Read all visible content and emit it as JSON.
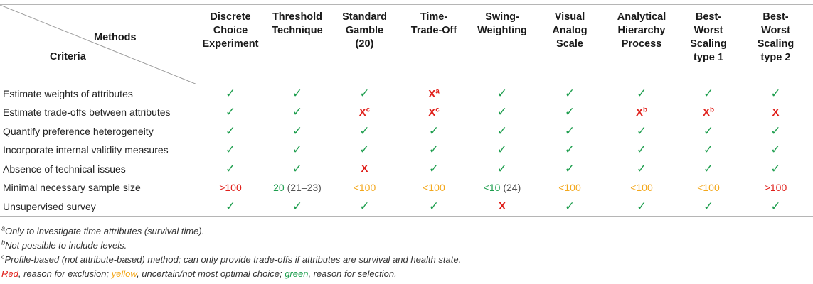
{
  "table": {
    "corner": {
      "methods_label": "Methods",
      "criteria_label": "Criteria"
    },
    "methods": [
      {
        "lines": [
          "Discrete",
          "Choice",
          "Experiment",
          ""
        ]
      },
      {
        "lines": [
          "Threshold",
          "Technique",
          "",
          ""
        ]
      },
      {
        "lines": [
          "Standard",
          "Gamble",
          "(20)",
          ""
        ]
      },
      {
        "lines": [
          "Time-",
          "Trade-Off",
          "",
          ""
        ]
      },
      {
        "lines": [
          "Swing-",
          "Weighting",
          "",
          ""
        ]
      },
      {
        "lines": [
          "Visual",
          "Analog",
          "Scale",
          ""
        ]
      },
      {
        "lines": [
          "Analytical",
          "Hierarchy",
          "Process",
          ""
        ]
      },
      {
        "lines": [
          "Best-",
          "Worst",
          "Scaling",
          "type 1"
        ]
      },
      {
        "lines": [
          "Best-",
          "Worst",
          "Scaling",
          "type 2"
        ]
      }
    ],
    "rows": [
      {
        "label": "Estimate weights of attributes",
        "cells": [
          {
            "text": "✓",
            "kind": "check",
            "sup": "",
            "extra": ""
          },
          {
            "text": "✓",
            "kind": "check",
            "sup": "",
            "extra": ""
          },
          {
            "text": "✓",
            "kind": "check",
            "sup": "",
            "extra": ""
          },
          {
            "text": "X",
            "kind": "cross",
            "sup": "a",
            "extra": ""
          },
          {
            "text": "✓",
            "kind": "check",
            "sup": "",
            "extra": ""
          },
          {
            "text": "✓",
            "kind": "check",
            "sup": "",
            "extra": ""
          },
          {
            "text": "✓",
            "kind": "check",
            "sup": "",
            "extra": ""
          },
          {
            "text": "✓",
            "kind": "check",
            "sup": "",
            "extra": ""
          },
          {
            "text": "✓",
            "kind": "check",
            "sup": "",
            "extra": ""
          }
        ]
      },
      {
        "label": "Estimate trade-offs between attributes",
        "cells": [
          {
            "text": "✓",
            "kind": "check",
            "sup": "",
            "extra": ""
          },
          {
            "text": "✓",
            "kind": "check",
            "sup": "",
            "extra": ""
          },
          {
            "text": "X",
            "kind": "cross",
            "sup": "c",
            "extra": ""
          },
          {
            "text": "X",
            "kind": "cross",
            "sup": "c",
            "extra": ""
          },
          {
            "text": "✓",
            "kind": "check",
            "sup": "",
            "extra": ""
          },
          {
            "text": "✓",
            "kind": "check",
            "sup": "",
            "extra": ""
          },
          {
            "text": "X",
            "kind": "cross",
            "sup": "b",
            "extra": ""
          },
          {
            "text": "X",
            "kind": "cross",
            "sup": "b",
            "extra": ""
          },
          {
            "text": "X",
            "kind": "cross",
            "sup": "",
            "extra": ""
          }
        ]
      },
      {
        "label": "Quantify preference heterogeneity",
        "cells": [
          {
            "text": "✓",
            "kind": "check",
            "sup": "",
            "extra": ""
          },
          {
            "text": "✓",
            "kind": "check",
            "sup": "",
            "extra": ""
          },
          {
            "text": "✓",
            "kind": "check",
            "sup": "",
            "extra": ""
          },
          {
            "text": "✓",
            "kind": "check",
            "sup": "",
            "extra": ""
          },
          {
            "text": "✓",
            "kind": "check",
            "sup": "",
            "extra": ""
          },
          {
            "text": "✓",
            "kind": "check",
            "sup": "",
            "extra": ""
          },
          {
            "text": "✓",
            "kind": "check",
            "sup": "",
            "extra": ""
          },
          {
            "text": "✓",
            "kind": "check",
            "sup": "",
            "extra": ""
          },
          {
            "text": "✓",
            "kind": "check",
            "sup": "",
            "extra": ""
          }
        ]
      },
      {
        "label": "Incorporate internal validity measures",
        "cells": [
          {
            "text": "✓",
            "kind": "check",
            "sup": "",
            "extra": ""
          },
          {
            "text": "✓",
            "kind": "check",
            "sup": "",
            "extra": ""
          },
          {
            "text": "✓",
            "kind": "check",
            "sup": "",
            "extra": ""
          },
          {
            "text": "✓",
            "kind": "check",
            "sup": "",
            "extra": ""
          },
          {
            "text": "✓",
            "kind": "check",
            "sup": "",
            "extra": ""
          },
          {
            "text": "✓",
            "kind": "check",
            "sup": "",
            "extra": ""
          },
          {
            "text": "✓",
            "kind": "check",
            "sup": "",
            "extra": ""
          },
          {
            "text": "✓",
            "kind": "check",
            "sup": "",
            "extra": ""
          },
          {
            "text": "✓",
            "kind": "check",
            "sup": "",
            "extra": ""
          }
        ]
      },
      {
        "label": "Absence of technical issues",
        "cells": [
          {
            "text": "✓",
            "kind": "check",
            "sup": "",
            "extra": ""
          },
          {
            "text": "✓",
            "kind": "check",
            "sup": "",
            "extra": ""
          },
          {
            "text": "X",
            "kind": "cross",
            "sup": "",
            "extra": ""
          },
          {
            "text": "✓",
            "kind": "check",
            "sup": "",
            "extra": ""
          },
          {
            "text": "✓",
            "kind": "check",
            "sup": "",
            "extra": ""
          },
          {
            "text": "✓",
            "kind": "check",
            "sup": "",
            "extra": ""
          },
          {
            "text": "✓",
            "kind": "check",
            "sup": "",
            "extra": ""
          },
          {
            "text": "✓",
            "kind": "check",
            "sup": "",
            "extra": ""
          },
          {
            "text": "✓",
            "kind": "check",
            "sup": "",
            "extra": ""
          }
        ]
      },
      {
        "label": "Minimal necessary sample size",
        "cells": [
          {
            "text": ">100",
            "kind": "red",
            "sup": "",
            "extra": ""
          },
          {
            "text": "20",
            "kind": "green",
            "sup": "",
            "extra": "(21–23)"
          },
          {
            "text": "<100",
            "kind": "yellow",
            "sup": "",
            "extra": ""
          },
          {
            "text": "<100",
            "kind": "yellow",
            "sup": "",
            "extra": ""
          },
          {
            "text": "<10",
            "kind": "green",
            "sup": "",
            "extra": "(24)"
          },
          {
            "text": "<100",
            "kind": "yellow",
            "sup": "",
            "extra": ""
          },
          {
            "text": "<100",
            "kind": "yellow",
            "sup": "",
            "extra": ""
          },
          {
            "text": "<100",
            "kind": "yellow",
            "sup": "",
            "extra": ""
          },
          {
            "text": ">100",
            "kind": "red",
            "sup": "",
            "extra": ""
          }
        ]
      },
      {
        "label": "Unsupervised survey",
        "cells": [
          {
            "text": "✓",
            "kind": "check",
            "sup": "",
            "extra": ""
          },
          {
            "text": "✓",
            "kind": "check",
            "sup": "",
            "extra": ""
          },
          {
            "text": "✓",
            "kind": "check",
            "sup": "",
            "extra": ""
          },
          {
            "text": "✓",
            "kind": "check",
            "sup": "",
            "extra": ""
          },
          {
            "text": "X",
            "kind": "cross",
            "sup": "",
            "extra": ""
          },
          {
            "text": "✓",
            "kind": "check",
            "sup": "",
            "extra": ""
          },
          {
            "text": "✓",
            "kind": "check",
            "sup": "",
            "extra": ""
          },
          {
            "text": "✓",
            "kind": "check",
            "sup": "",
            "extra": ""
          },
          {
            "text": "✓",
            "kind": "check",
            "sup": "",
            "extra": ""
          }
        ]
      }
    ]
  },
  "footnotes": {
    "a": {
      "mark": "a",
      "text": "Only to investigate time attributes (survival time)."
    },
    "b": {
      "mark": "b",
      "text": "Not possible to include levels."
    },
    "c": {
      "mark": "c",
      "text": "Profile-based (not attribute-based) method; can only provide trade-offs if attributes are survival and health state."
    },
    "legend": {
      "red_word": "Red",
      "red_text": ", reason for exclusion; ",
      "yellow_word": "yellow",
      "yellow_text": ", uncertain/not most optimal choice; ",
      "green_word": "green",
      "green_text": ", reason for selection."
    }
  },
  "colors": {
    "check": "#1e9e4e",
    "cross": "#e0201b",
    "yellow": "#f3a81e",
    "rule": "#b5b5b5"
  }
}
